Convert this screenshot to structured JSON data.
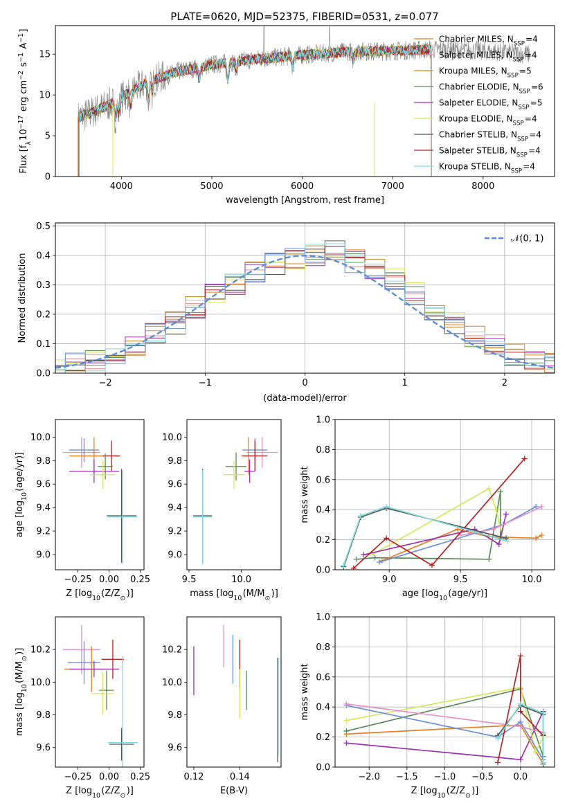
{
  "chart_data": [
    {
      "type": "line",
      "panel": "spectrum",
      "title": "PLATE=0620, MJD=52375, FIBERID=0531, z=0.077",
      "xlabel": "wavelength [Angstrom, rest frame]",
      "ylabel": "Flux [f_λ 10^-17 erg cm^-2 s^-1 A^-1]",
      "xlim": [
        3270,
        8790
      ],
      "ylim": [
        0,
        18.5
      ],
      "xticks": [
        "4000",
        "5000",
        "6000",
        "7000",
        "8000"
      ],
      "yticks": [
        "0",
        "5",
        "10",
        "15"
      ],
      "grid": false,
      "legend_position": "right",
      "legend": [
        {
          "label": "Chabrier MILES, N_SSP=4",
          "color": "#e67e22"
        },
        {
          "label": "Salpeter MILES, N_SSP=4",
          "color": "#f08080"
        },
        {
          "label": "Kroupa MILES, N_SSP=5",
          "color": "#d4881a"
        },
        {
          "label": "Chabrier ELODIE, N_SSP=6",
          "color": "#5a8a5a"
        },
        {
          "label": "Salpeter ELODIE, N_SSP=5",
          "color": "#9b30b0"
        },
        {
          "label": "Kroupa ELODIE, N_SSP=4",
          "color": "#d4e85a"
        },
        {
          "label": "Chabrier STELIB, N_SSP=4",
          "color": "#555555"
        },
        {
          "label": "Salpeter STELIB, N_SSP=4",
          "color": "#b22222"
        },
        {
          "label": "Kroupa STELIB, N_SSP=4",
          "color": "#80d8e0"
        }
      ],
      "continuum": {
        "x": [
          3520,
          3700,
          3900,
          4100,
          4300,
          4600,
          5000,
          5500,
          6000,
          6500,
          7000,
          7500,
          8000,
          8500
        ],
        "y": [
          7.2,
          8.0,
          9.0,
          10.4,
          11.6,
          12.8,
          13.7,
          14.4,
          14.9,
          15.3,
          15.4,
          15.6,
          15.4,
          15.0
        ]
      },
      "data_range": [
        3520,
        8520
      ],
      "model_range": [
        3520,
        7430
      ]
    },
    {
      "type": "line",
      "panel": "residuals",
      "xlabel": "(data-model)/error",
      "ylabel": "Normed distribution",
      "xlim": [
        -2.5,
        2.5
      ],
      "ylim": [
        0,
        0.51
      ],
      "xticks": [
        "−2",
        "−1",
        "0",
        "1",
        "2"
      ],
      "yticks": [
        "0.0",
        "0.1",
        "0.2",
        "0.3",
        "0.4",
        "0.5"
      ],
      "grid": true,
      "legend_position": "upper right",
      "legend": [
        {
          "label": "𝒩(0, 1)",
          "color": "#5b8dd6"
        }
      ],
      "bin_edges": [
        -2.5,
        -2.4,
        -2.2,
        -2.0,
        -1.8,
        -1.6,
        -1.4,
        -1.2,
        -1.0,
        -0.8,
        -0.6,
        -0.4,
        -0.2,
        0.0,
        0.2,
        0.4,
        0.6,
        0.8,
        1.0,
        1.2,
        1.4,
        1.6,
        1.8,
        2.0,
        2.2,
        2.4,
        2.5
      ],
      "histogram_values": [
        0.02,
        0.03,
        0.04,
        0.06,
        0.09,
        0.13,
        0.17,
        0.22,
        0.27,
        0.3,
        0.34,
        0.37,
        0.39,
        0.4,
        0.41,
        0.38,
        0.36,
        0.32,
        0.27,
        0.22,
        0.17,
        0.12,
        0.09,
        0.06,
        0.04,
        0.03
      ]
    },
    {
      "type": "scatter",
      "panel": "age_vs_Z",
      "xlabel": "Z [log10(Z/Z⊙)]",
      "ylabel": "age  [log10(age/yr)]",
      "xlim": [
        -0.43,
        0.28
      ],
      "ylim": [
        8.87,
        10.15
      ],
      "xticks": [
        "−0.25",
        "0.00",
        "0.25"
      ],
      "yticks": [
        "9.0",
        "9.2",
        "9.4",
        "9.6",
        "9.8",
        "10.0"
      ],
      "points": [
        {
          "x": -0.22,
          "y": 9.87,
          "xerr": 0.15,
          "yerr": 0.13,
          "color": "#e88ec6"
        },
        {
          "x": -0.2,
          "y": 9.89,
          "xerr": 0.12,
          "yerr": 0.1,
          "color": "#6b8fd8"
        },
        {
          "x": -0.12,
          "y": 9.84,
          "xerr": 0.2,
          "yerr": 0.16,
          "color": "#e67e22"
        },
        {
          "x": 0.02,
          "y": 9.84,
          "xerr": 0.07,
          "yerr": 0.13,
          "color": "#b22222"
        },
        {
          "x": -0.03,
          "y": 9.75,
          "xerr": 0.06,
          "yerr": 0.11,
          "color": "#5a8a5a"
        },
        {
          "x": -0.12,
          "y": 9.71,
          "xerr": 0.2,
          "yerr": 0.1,
          "color": "#9b30b0"
        },
        {
          "x": -0.05,
          "y": 9.68,
          "xerr": 0.1,
          "yerr": 0.12,
          "color": "#d4e85a"
        },
        {
          "x": 0.1,
          "y": 9.33,
          "xerr": 0.12,
          "yerr": 0.4,
          "color": "#555555"
        },
        {
          "x": 0.11,
          "y": 9.32,
          "xerr": 0.12,
          "yerr": 0.4,
          "color": "#80d8e0"
        }
      ]
    },
    {
      "type": "scatter",
      "panel": "age_vs_mass",
      "xlabel": "mass [log10(M/M⊙)]",
      "ylabel": "",
      "xlim": [
        9.48,
        10.38
      ],
      "ylim": [
        8.87,
        10.15
      ],
      "xticks": [
        "9.5",
        "10.0"
      ],
      "yticks": [
        "9.0",
        "9.2",
        "9.4",
        "9.6",
        "9.8",
        "10.0"
      ],
      "points": [
        {
          "x": 10.2,
          "y": 9.87,
          "xerr": 0.15,
          "yerr": 0.13,
          "color": "#e88ec6"
        },
        {
          "x": 10.13,
          "y": 9.89,
          "xerr": 0.12,
          "yerr": 0.1,
          "color": "#6b8fd8"
        },
        {
          "x": 10.07,
          "y": 9.84,
          "xerr": 0.07,
          "yerr": 0.16,
          "color": "#e67e22"
        },
        {
          "x": 10.13,
          "y": 9.84,
          "xerr": 0.12,
          "yerr": 0.13,
          "color": "#b22222"
        },
        {
          "x": 9.95,
          "y": 9.75,
          "xerr": 0.1,
          "yerr": 0.12,
          "color": "#5a8a5a"
        },
        {
          "x": 10.08,
          "y": 9.71,
          "xerr": 0.05,
          "yerr": 0.1,
          "color": "#9b30b0"
        },
        {
          "x": 9.93,
          "y": 9.68,
          "xerr": 0.1,
          "yerr": 0.12,
          "color": "#d4e85a"
        },
        {
          "x": 9.63,
          "y": 9.33,
          "xerr": 0.09,
          "yerr": 0.4,
          "color": "#555555"
        },
        {
          "x": 9.63,
          "y": 9.32,
          "xerr": 0.09,
          "yerr": 0.4,
          "color": "#80d8e0"
        }
      ]
    },
    {
      "type": "line",
      "panel": "massweight_vs_age",
      "xlabel": "age  [log10(age/yr)]",
      "ylabel": "mass weight",
      "xlim": [
        8.62,
        10.16
      ],
      "ylim": [
        0,
        1
      ],
      "xticks": [
        "9.0",
        "9.5",
        "10.0"
      ],
      "yticks": [
        "0.0",
        "0.2",
        "0.4",
        "0.6",
        "0.8",
        "1.0"
      ],
      "grid": true,
      "series": [
        {
          "color": "#5a8a5a",
          "x": [
            8.77,
            8.9,
            9.7,
            9.78,
            9.78
          ],
          "y": [
            0.07,
            0.08,
            0.07,
            0.52,
            0.21
          ]
        },
        {
          "color": "#e67e22",
          "x": [
            8.95,
            9.48,
            9.7,
            10.03,
            10.07
          ],
          "y": [
            0.06,
            0.27,
            0.22,
            0.21,
            0.23
          ]
        },
        {
          "color": "#d4e85a",
          "x": [
            8.88,
            9.7,
            9.75,
            9.8
          ],
          "y": [
            0.1,
            0.54,
            0.4,
            0.2
          ]
        },
        {
          "color": "#6b8fd8",
          "x": [
            8.93,
            9.8,
            10.03
          ],
          "y": [
            0.05,
            0.3,
            0.42
          ]
        },
        {
          "color": "#9b30b0",
          "x": [
            8.82,
            9.6,
            9.77,
            9.82
          ],
          "y": [
            0.1,
            0.27,
            0.17,
            0.37
          ]
        },
        {
          "color": "#e88ec6",
          "x": [
            9.5,
            9.73,
            10.07
          ],
          "y": [
            0.23,
            0.27,
            0.42
          ]
        },
        {
          "color": "#b22222",
          "x": [
            8.75,
            8.98,
            9.3,
            9.95
          ],
          "y": [
            0.01,
            0.21,
            0.03,
            0.74
          ]
        },
        {
          "color": "#555555",
          "x": [
            8.68,
            8.8,
            8.98,
            9.82
          ],
          "y": [
            0.02,
            0.35,
            0.41,
            0.21
          ]
        },
        {
          "color": "#80d8e0",
          "x": [
            8.68,
            8.8,
            8.98,
            9.83
          ],
          "y": [
            0.03,
            0.36,
            0.42,
            0.19
          ]
        }
      ]
    },
    {
      "type": "scatter",
      "panel": "mass_vs_Z",
      "xlabel": "Z [log10(Z/Z⊙)]",
      "ylabel": "mass [log10(M/M⊙)]",
      "xlim": [
        -0.43,
        0.28
      ],
      "ylim": [
        9.48,
        10.4
      ],
      "xticks": [
        "−0.25",
        "0.00",
        "0.25"
      ],
      "yticks": [
        "9.6",
        "9.8",
        "10.0",
        "10.2"
      ],
      "points": [
        {
          "x": -0.22,
          "y": 10.2,
          "xerr": 0.15,
          "yerr": 0.15,
          "color": "#e88ec6"
        },
        {
          "x": -0.2,
          "y": 10.12,
          "xerr": 0.13,
          "yerr": 0.13,
          "color": "#6b8fd8"
        },
        {
          "x": -0.14,
          "y": 10.08,
          "xerr": 0.22,
          "yerr": 0.14,
          "color": "#e67e22"
        },
        {
          "x": 0.03,
          "y": 10.14,
          "xerr": 0.09,
          "yerr": 0.12,
          "color": "#b22222"
        },
        {
          "x": -0.02,
          "y": 9.95,
          "xerr": 0.06,
          "yerr": 0.12,
          "color": "#5a8a5a"
        },
        {
          "x": -0.12,
          "y": 10.08,
          "xerr": 0.2,
          "yerr": 0.05,
          "color": "#9b30b0"
        },
        {
          "x": -0.05,
          "y": 9.93,
          "xerr": 0.09,
          "yerr": 0.13,
          "color": "#d4e85a"
        },
        {
          "x": 0.1,
          "y": 9.62,
          "xerr": 0.1,
          "yerr": 0.1,
          "color": "#555555"
        },
        {
          "x": 0.11,
          "y": 9.63,
          "xerr": 0.12,
          "yerr": 0.53,
          "color": "#80d8e0"
        }
      ]
    },
    {
      "type": "scatter",
      "panel": "mass_vs_EBV",
      "xlabel": "E(B-V)",
      "ylabel": "",
      "xlim": [
        0.117,
        0.158
      ],
      "ylim": [
        9.48,
        10.4
      ],
      "xticks": [
        "0.12",
        "0.14"
      ],
      "yticks": [
        "9.6",
        "9.8",
        "10.0",
        "10.2"
      ],
      "points": [
        {
          "x": 0.12,
          "y": 10.07,
          "yerr": 0.15,
          "color": "#9b30b0"
        },
        {
          "x": 0.133,
          "y": 10.22,
          "yerr": 0.13,
          "color": "#e88ec6"
        },
        {
          "x": 0.137,
          "y": 10.14,
          "yerr": 0.15,
          "color": "#6b8fd8"
        },
        {
          "x": 0.14,
          "y": 10.11,
          "yerr": 0.15,
          "color": "#b22222"
        },
        {
          "x": 0.14,
          "y": 9.93,
          "yerr": 0.15,
          "color": "#d4e85a"
        },
        {
          "x": 0.143,
          "y": 9.95,
          "yerr": 0.12,
          "color": "#5a8a5a"
        },
        {
          "x": 0.1565,
          "y": 9.83,
          "yerr": 0.32,
          "color": "#555555"
        },
        {
          "x": 0.1568,
          "y": 9.85,
          "yerr": 0.3,
          "color": "#80d8e0"
        }
      ]
    },
    {
      "type": "line",
      "panel": "massweight_vs_Z",
      "xlabel": "Z [log10(Z/Z⊙)]",
      "ylabel": "mass weight",
      "xlim": [
        -2.45,
        0.45
      ],
      "ylim": [
        0,
        1
      ],
      "xticks": [
        "−2.0",
        "−1.5",
        "−1.0",
        "−0.5",
        "0.0"
      ],
      "yticks": [
        "0.0",
        "0.2",
        "0.4",
        "0.6",
        "0.8",
        "1.0"
      ],
      "grid": true,
      "series": [
        {
          "color": "#9b30b0",
          "x": [
            -2.3,
            0.0,
            0.3
          ],
          "y": [
            0.16,
            0.05,
            0.37
          ]
        },
        {
          "color": "#e67e22",
          "x": [
            -2.3,
            0.0,
            0.3
          ],
          "y": [
            0.22,
            0.28,
            0.02
          ]
        },
        {
          "color": "#5a8a5a",
          "x": [
            -2.3,
            0.0,
            0.3,
            0.3
          ],
          "y": [
            0.24,
            0.52,
            0.07,
            0.22
          ]
        },
        {
          "color": "#d4e85a",
          "x": [
            -2.3,
            0.0,
            0.2,
            0.3
          ],
          "y": [
            0.31,
            0.53,
            0.1,
            0.2
          ]
        },
        {
          "color": "#6b8fd8",
          "x": [
            -2.3,
            -0.3,
            0.0,
            0.3
          ],
          "y": [
            0.41,
            0.2,
            0.3,
            0.05
          ]
        },
        {
          "color": "#e88ec6",
          "x": [
            -2.3,
            0.0,
            0.3
          ],
          "y": [
            0.42,
            0.27,
            0.23
          ]
        },
        {
          "color": "#b22222",
          "x": [
            -0.3,
            0.0,
            0.0,
            0.3
          ],
          "y": [
            0.03,
            0.74,
            0.37,
            0.21
          ]
        },
        {
          "color": "#555555",
          "x": [
            -0.3,
            0.0,
            0.3,
            0.3
          ],
          "y": [
            0.21,
            0.41,
            0.35,
            0.02
          ]
        },
        {
          "color": "#80d8e0",
          "x": [
            -0.3,
            0.0,
            0.3,
            0.3
          ],
          "y": [
            0.19,
            0.42,
            0.36,
            0.03
          ]
        }
      ]
    }
  ]
}
